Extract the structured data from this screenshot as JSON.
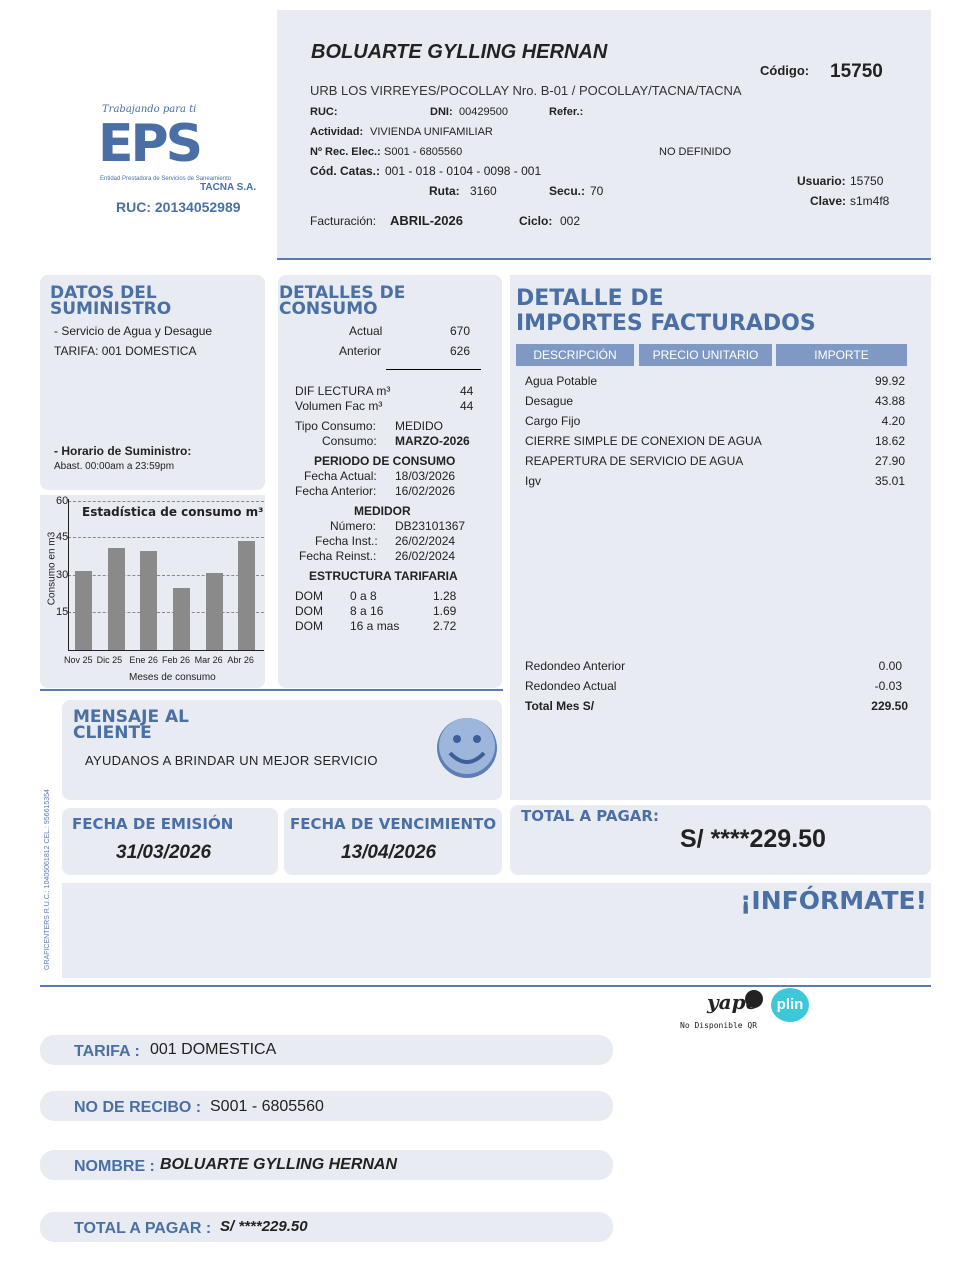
{
  "company": {
    "tagline": "Trabajando para ti",
    "logo_text": "EPS",
    "full_name": "Entidad Prestadora de Servicios de Saneamiento",
    "city": "TACNA S.A.",
    "ruc": "RUC: 20134052989",
    "color": "#4a6fa5"
  },
  "header": {
    "name": "BOLUARTE GYLLING HERNAN",
    "codigo_label": "Código:",
    "codigo": "15750",
    "address": "URB LOS VIRREYES/POCOLLAY Nro. B-01 / POCOLLAY/TACNA/TACNA",
    "ruc_label": "RUC:",
    "dni_label": "DNI:",
    "dni": "00429500",
    "refer_label": "Refer.:",
    "actividad_label": "Actividad:",
    "actividad": "VIVIENDA UNIFAMILIAR",
    "rec_label": "Nº Rec. Elec.:",
    "rec": "S001 - 6805560",
    "no_definido": "NO DEFINIDO",
    "catas_label": "Cód. Catas.:",
    "catas": "001 - 018 - 0104 - 0098 - 001",
    "ruta_label": "Ruta:",
    "ruta": "3160",
    "secu_label": "Secu.:",
    "secu": "70",
    "usuario_label": "Usuario:",
    "usuario": "15750",
    "clave_label": "Clave:",
    "clave": "s1m4f8",
    "fact_label": "Facturación:",
    "fact": "ABRIL-2026",
    "ciclo_label": "Ciclo:",
    "ciclo": "002"
  },
  "suministro": {
    "title1": "DATOS DEL",
    "title2": "SUMINISTRO",
    "servicio": "- Servicio de Agua y Desague",
    "tarifa": "TARIFA: 001 DOMESTICA",
    "horario_label": "- Horario de Suministro:",
    "horario": "Abast. 00:00am a 23:59pm"
  },
  "chart_data": {
    "type": "bar",
    "title": "Estadística de consumo m³",
    "xlabel": "Meses de consumo",
    "ylabel": "Consumo en m3",
    "ylim": [
      0,
      60
    ],
    "yticks": [
      "15",
      "30",
      "45",
      "60"
    ],
    "grid": true,
    "categories": [
      "Nov 25",
      "Dic 25",
      "Ene 26",
      "Feb 26",
      "Mar 26",
      "Abr 26"
    ],
    "values": [
      32,
      41,
      40,
      25,
      31,
      44
    ],
    "bar_color": "#8a8a8a"
  },
  "consumo": {
    "title1": "DETALLES DE",
    "title2": "CONSUMO",
    "actual_label": "Actual",
    "actual": "670",
    "anterior_label": "Anterior",
    "anterior": "626",
    "dif_label": "DIF LECTURA m³",
    "dif": "44",
    "vol_label": "Volumen Fac m³",
    "vol": "44",
    "tipo_label": "Tipo Consumo:",
    "tipo": "MEDIDO",
    "consumo_label": "Consumo:",
    "consumo": "MARZO-2026",
    "periodo_title": "PERIODO DE CONSUMO",
    "fa_label": "Fecha Actual:",
    "fa": "18/03/2026",
    "fan_label": "Fecha Anterior:",
    "fan": "16/02/2026",
    "medidor_title": "MEDIDOR",
    "num_label": "Número:",
    "num": "DB23101367",
    "fi_label": "Fecha Inst.:",
    "fi": "26/02/2024",
    "fr_label": "Fecha Reinst.:",
    "fr": "26/02/2024",
    "estructura_title": "ESTRUCTURA TARIFARIA",
    "tarifas": [
      {
        "c": "DOM",
        "r": "0 a 8",
        "v": "1.28"
      },
      {
        "c": "DOM",
        "r": "8 a 16",
        "v": "1.69"
      },
      {
        "c": "DOM",
        "r": "16 a mas",
        "v": "2.72"
      }
    ]
  },
  "importes": {
    "title1": "DETALLE DE",
    "title2": "IMPORTES FACTURADOS",
    "headers": [
      "DESCRIPCIÓN",
      "PRECIO UNITARIO",
      "IMPORTE"
    ],
    "items": [
      {
        "d": "Agua Potable",
        "v": "99.92"
      },
      {
        "d": "Desague",
        "v": "43.88"
      },
      {
        "d": "Cargo Fijo",
        "v": "4.20"
      },
      {
        "d": "CIERRE SIMPLE DE CONEXION DE AGUA",
        "v": "18.62"
      },
      {
        "d": "REAPERTURA DE SERVICIO DE AGUA",
        "v": "27.90"
      },
      {
        "d": "Igv",
        "v": "35.01"
      }
    ],
    "redondeo_ant_label": "Redondeo Anterior",
    "redondeo_ant": "0.00",
    "redondeo_act_label": "Redondeo Actual",
    "redondeo_act": "-0.03",
    "total_label": "Total Mes S/",
    "total": "229.50"
  },
  "mensaje": {
    "title1": "MENSAJE AL",
    "title2": "CLIENTE",
    "text": "AYUDANOS A BRINDAR UN MEJOR SERVICIO"
  },
  "fechas": {
    "emision_label": "FECHA DE EMISIÓN",
    "emision": "31/03/2026",
    "venc_label": "FECHA DE VENCIMIENTO",
    "venc": "13/04/2026"
  },
  "total": {
    "label": "TOTAL A PAGAR:",
    "value": "S/ ****229.50"
  },
  "informate": "¡INFÓRMATE!",
  "printer": "GRAFICENTERS R.U.C.: 10405061812 CEL.: 956615354",
  "payment": {
    "yape": "yape",
    "plin": "plin",
    "qr_note": "No Disponible QR"
  },
  "stub": [
    {
      "label": "TARIFA :",
      "value": "001 DOMESTICA"
    },
    {
      "label": "NO DE RECIBO :",
      "value": "S001 - 6805560"
    },
    {
      "label": "NOMBRE :",
      "value": "BOLUARTE GYLLING HERNAN"
    },
    {
      "label": "TOTAL A PAGAR :",
      "value": "S/ ****229.50"
    }
  ]
}
